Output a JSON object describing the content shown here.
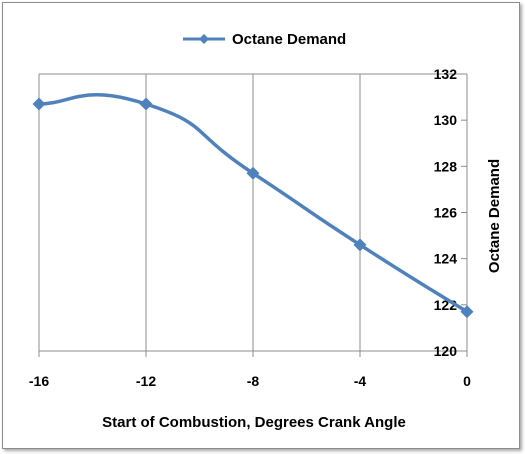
{
  "chart_data": {
    "type": "line",
    "title": "",
    "xlabel": "Start of Combustion, Degrees Crank Angle",
    "ylabel": "Octane Demand",
    "xlim": [
      -16,
      0
    ],
    "ylim": [
      120,
      132
    ],
    "xticks": [
      -16,
      -12,
      -8,
      -4,
      0
    ],
    "yticks": [
      120,
      122,
      124,
      126,
      128,
      130,
      132
    ],
    "grid": "vertical",
    "y_axis_position": "right",
    "legend_position": "top",
    "series": [
      {
        "name": "Octane Demand",
        "color": "#4f81bd",
        "marker": "diamond",
        "smooth": true,
        "x": [
          -16,
          -12,
          -8,
          -4,
          0
        ],
        "y": [
          130.7,
          130.7,
          127.7,
          124.6,
          121.7
        ]
      }
    ]
  }
}
